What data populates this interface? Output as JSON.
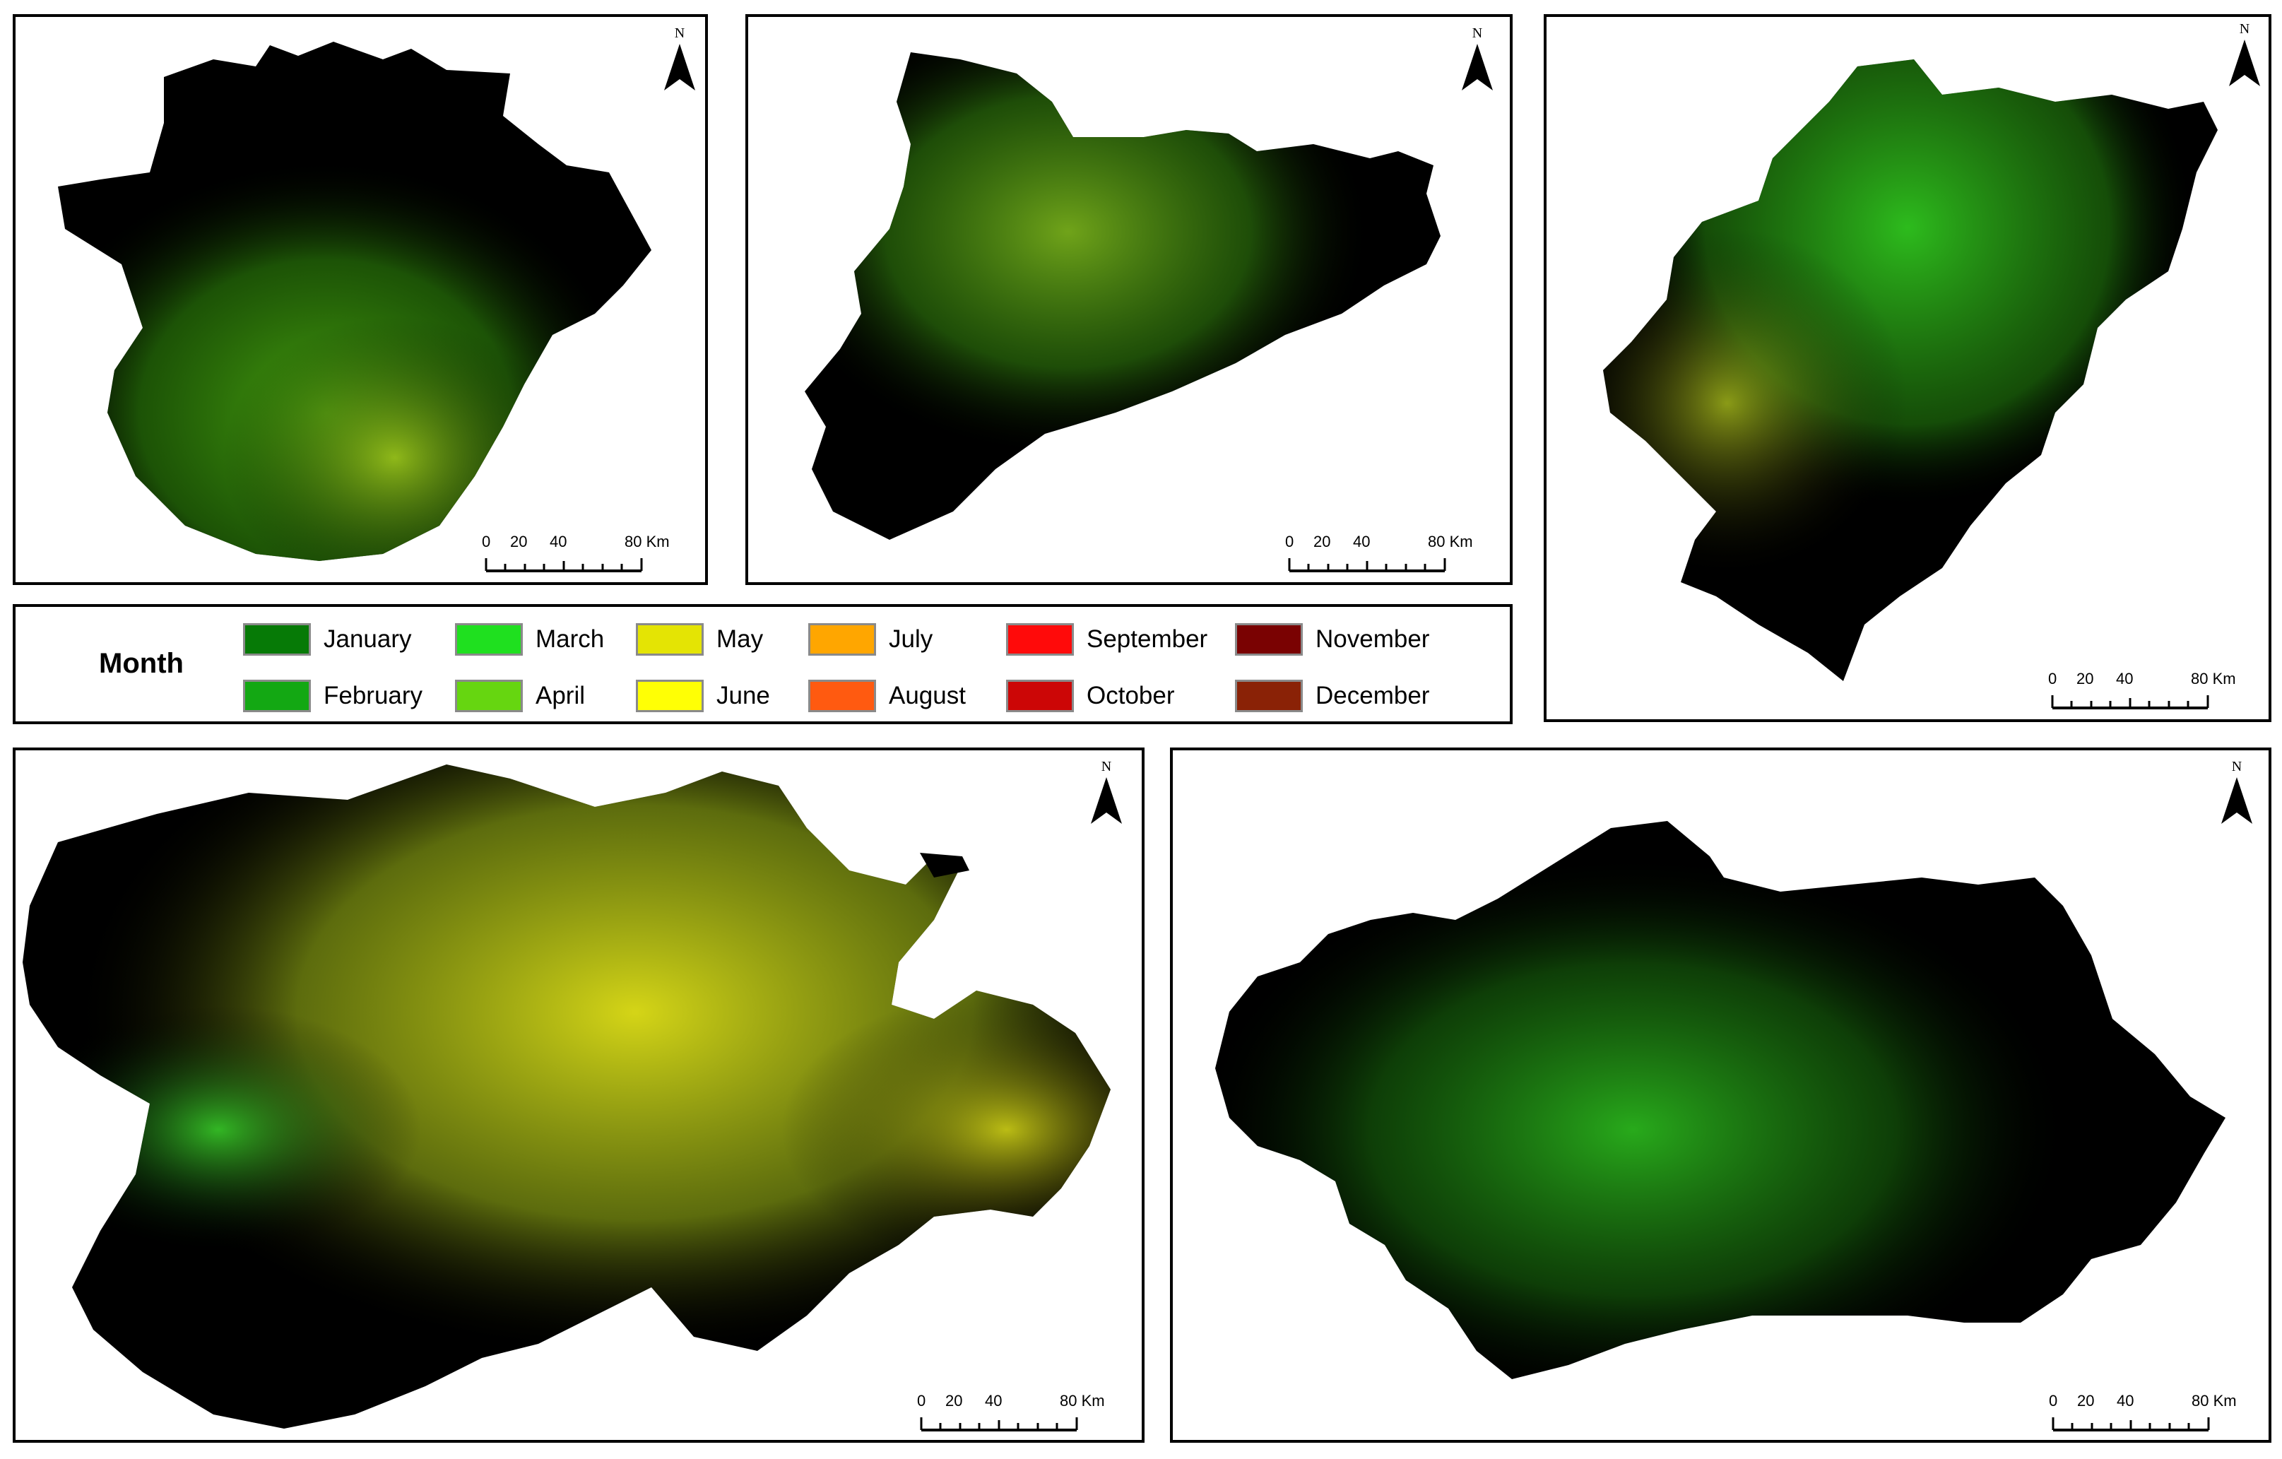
{
  "legend": {
    "title": "Month",
    "items": [
      {
        "label": "January",
        "color": "#067a06"
      },
      {
        "label": "February",
        "color": "#13a813"
      },
      {
        "label": "March",
        "color": "#1fe01f"
      },
      {
        "label": "April",
        "color": "#66d610"
      },
      {
        "label": "May",
        "color": "#e4e404"
      },
      {
        "label": "June",
        "color": "#ffff05"
      },
      {
        "label": "July",
        "color": "#ffa600"
      },
      {
        "label": "August",
        "color": "#ff5a10"
      },
      {
        "label": "September",
        "color": "#ff0a0a"
      },
      {
        "label": "October",
        "color": "#cc0606"
      },
      {
        "label": "November",
        "color": "#7a0202"
      },
      {
        "label": "December",
        "color": "#8a2206"
      }
    ]
  },
  "north_arrow": {
    "label": "N",
    "icon": "north-arrow-icon"
  },
  "scale_bar": {
    "ticks": [
      "0",
      "20",
      "40",
      "80 Km"
    ]
  },
  "maps": [
    {
      "panel": "top-left"
    },
    {
      "panel": "top-center"
    },
    {
      "panel": "top-right"
    },
    {
      "panel": "bottom-left"
    },
    {
      "panel": "bottom-right"
    }
  ]
}
